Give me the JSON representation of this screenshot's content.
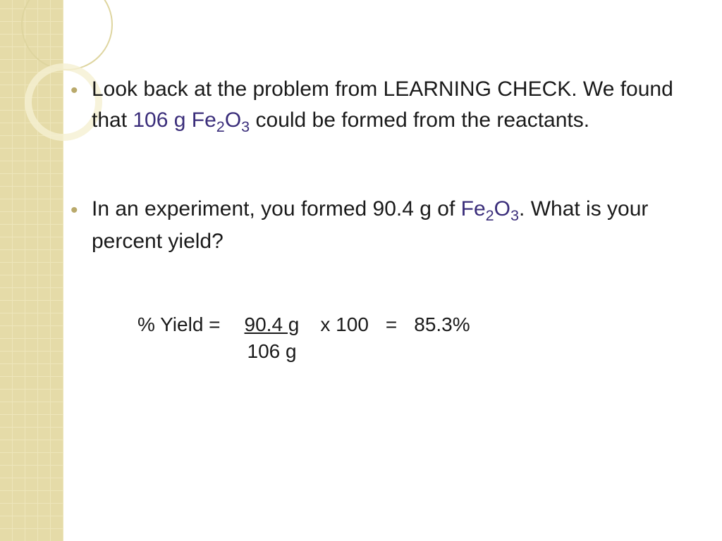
{
  "colors": {
    "sidebar_bg": "#e5dba8",
    "sidebar_grid": "#eee6bb",
    "bullet_color": "#b9a96b",
    "text_color": "#1a1a1a",
    "highlight_color": "#3a2d7a",
    "page_bg": "#ffffff"
  },
  "typography": {
    "body_fontsize": 30,
    "formula_fontsize": 28,
    "body_font": "Arial",
    "formula_font": "Segoe UI"
  },
  "bullets": [
    {
      "pre": "Look back at the problem from LEARNING CHECK.  We found that ",
      "highlight": "106 g Fe",
      "sub1": "2",
      "mid": "O",
      "sub2": "3",
      "post": " could be formed from the reactants."
    },
    {
      "pre": "In an experiment, you formed 90.4 g of ",
      "highlight": "Fe",
      "sub1": "2",
      "mid": "O",
      "sub2": "3",
      "post": ".  What is your percent yield?"
    }
  ],
  "formula": {
    "label": "% Yield  =",
    "numerator": "90.4 g",
    "denominator": "106 g",
    "multiplier": "x 100",
    "equals": "=",
    "result": "85.3%"
  }
}
